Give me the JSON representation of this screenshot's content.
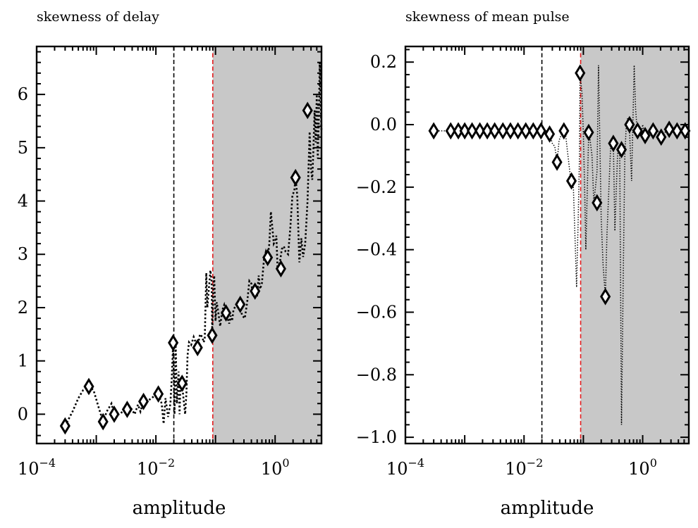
{
  "chart_data": [
    {
      "type": "scatter",
      "title": "skewness of delay",
      "xlabel": "amplitude",
      "ylabel": "",
      "xscale": "log",
      "xlim": [
        0.0001,
        6
      ],
      "ylim": [
        -0.55,
        6.9
      ],
      "x_ticks": [
        {
          "value": 0.0001,
          "base": "10",
          "exp": "−4"
        },
        {
          "value": 0.01,
          "base": "10",
          "exp": "−2"
        },
        {
          "value": 1,
          "base": "10",
          "exp": "0"
        }
      ],
      "y_ticks": [
        {
          "value": 0,
          "label": "0"
        },
        {
          "value": 1,
          "label": "1"
        },
        {
          "value": 2,
          "label": "2"
        },
        {
          "value": 3,
          "label": "3"
        },
        {
          "value": 4,
          "label": "4"
        },
        {
          "value": 5,
          "label": "5"
        },
        {
          "value": 6,
          "label": "6"
        }
      ],
      "vlines": [
        {
          "x": 0.02,
          "color": "#000000",
          "style": "dashed"
        },
        {
          "x": 0.09,
          "color": "#e41a1c",
          "style": "dashed"
        }
      ],
      "shaded_region": {
        "from": 0.09,
        "to": 6,
        "color": "#c8c8c8"
      },
      "markers": {
        "x": [
          0.0003,
          0.00075,
          0.0013,
          0.002,
          0.0033,
          0.0062,
          0.011,
          0.0195,
          0.0275,
          0.05,
          0.088,
          0.15,
          0.26,
          0.46,
          0.75,
          1.25,
          2.2,
          3.5
        ],
        "y": [
          -0.22,
          0.52,
          -0.14,
          0.0,
          0.09,
          0.24,
          0.38,
          1.34,
          0.58,
          1.25,
          1.48,
          1.9,
          2.06,
          2.31,
          2.94,
          2.73,
          4.44,
          5.7
        ]
      },
      "dotted_line": {
        "x": [
          0.0003,
          0.0004,
          0.0005,
          0.0006,
          0.00075,
          0.0009,
          0.0011,
          0.0013,
          0.0015,
          0.0018,
          0.002,
          0.0024,
          0.0028,
          0.0033,
          0.0038,
          0.0044,
          0.005,
          0.0055,
          0.0062,
          0.0066,
          0.0072,
          0.0085,
          0.0095,
          0.011,
          0.0125,
          0.0135,
          0.0145,
          0.016,
          0.0175,
          0.0185,
          0.0195,
          0.0205,
          0.0215,
          0.0225,
          0.024,
          0.025,
          0.026,
          0.0275,
          0.029,
          0.031,
          0.0325,
          0.034,
          0.036,
          0.039,
          0.043,
          0.05,
          0.055,
          0.06,
          0.063,
          0.066,
          0.07,
          0.073,
          0.078,
          0.082,
          0.086,
          0.088,
          0.091,
          0.095,
          0.1,
          0.105,
          0.11,
          0.12,
          0.13,
          0.14,
          0.15,
          0.16,
          0.17,
          0.18,
          0.19,
          0.2,
          0.22,
          0.24,
          0.26,
          0.28,
          0.31,
          0.34,
          0.37,
          0.4,
          0.43,
          0.46,
          0.5,
          0.53,
          0.56,
          0.6,
          0.65,
          0.7,
          0.75,
          0.8,
          0.85,
          0.9,
          0.95,
          1.0,
          1.05,
          1.1,
          1.2,
          1.3,
          1.4,
          1.5,
          1.65,
          1.8,
          1.95,
          2.1,
          2.2,
          2.35,
          2.55,
          2.75,
          2.95,
          3.2,
          3.5,
          3.8,
          4.0,
          4.2,
          4.4,
          4.6,
          4.8,
          5.0,
          5.2,
          5.4,
          5.6,
          6.0
        ],
        "y": [
          -0.22,
          0.05,
          0.3,
          0.45,
          0.52,
          0.45,
          0.12,
          -0.14,
          0.05,
          0.2,
          0.0,
          0.0,
          0.05,
          0.09,
          0.12,
          0.0,
          0.18,
          0.05,
          0.24,
          0.28,
          0.25,
          0.3,
          0.35,
          0.38,
          0.2,
          -0.18,
          0.3,
          -0.05,
          0.2,
          0.7,
          1.34,
          0.0,
          1.3,
          0.2,
          0.8,
          0.0,
          0.7,
          0.58,
          0.3,
          0.0,
          0.4,
          1.1,
          1.35,
          1.3,
          1.45,
          1.25,
          1.5,
          1.45,
          1.35,
          1.4,
          2.65,
          2.0,
          2.4,
          2.7,
          2.5,
          1.48,
          2.25,
          2.6,
          1.75,
          2.1,
          1.95,
          1.65,
          1.95,
          2.05,
          1.9,
          1.8,
          1.7,
          1.85,
          1.75,
          1.95,
          2.05,
          2.06,
          2.0,
          1.85,
          1.8,
          2.1,
          2.5,
          2.45,
          2.2,
          2.31,
          2.25,
          2.6,
          2.35,
          2.45,
          2.9,
          3.05,
          2.94,
          3.2,
          3.8,
          3.5,
          3.2,
          3.25,
          3.35,
          2.73,
          2.85,
          3.1,
          3.15,
          3.05,
          3.0,
          3.5,
          4.1,
          4.2,
          4.44,
          4.1,
          2.85,
          3.3,
          2.95,
          3.2,
          4.0,
          5.3,
          4.6,
          4.4,
          5.0,
          5.7,
          5.1,
          6.0,
          4.8,
          5.5,
          6.6,
          5.3
        ]
      }
    },
    {
      "type": "scatter",
      "title": "skewness of mean pulse",
      "xlabel": "amplitude",
      "ylabel": "",
      "xscale": "log",
      "xlim": [
        0.0001,
        6
      ],
      "ylim": [
        -1.02,
        0.25
      ],
      "x_ticks": [
        {
          "value": 0.0001,
          "base": "10",
          "exp": "−4"
        },
        {
          "value": 0.01,
          "base": "10",
          "exp": "−2"
        },
        {
          "value": 1,
          "base": "10",
          "exp": "0"
        }
      ],
      "y_ticks": [
        {
          "value": 0.2,
          "label": "0.2"
        },
        {
          "value": 0.0,
          "label": "0.0"
        },
        {
          "value": -0.2,
          "label": "−0.2"
        },
        {
          "value": -0.4,
          "label": "−0.4"
        },
        {
          "value": -0.6,
          "label": "−0.6"
        },
        {
          "value": -0.8,
          "label": "−0.8"
        },
        {
          "value": -1.0,
          "label": "−1.0"
        }
      ],
      "vlines": [
        {
          "x": 0.02,
          "color": "#000000",
          "style": "dashed"
        },
        {
          "x": 0.09,
          "color": "#e41a1c",
          "style": "dashed"
        }
      ],
      "shaded_region": {
        "from": 0.09,
        "to": 6,
        "color": "#c8c8c8"
      },
      "markers": {
        "x": [
          0.0003,
          0.00058,
          0.00078,
          0.001,
          0.00133,
          0.0018,
          0.0024,
          0.0032,
          0.0044,
          0.0059,
          0.0079,
          0.0107,
          0.0143,
          0.0193,
          0.027,
          0.036,
          0.047,
          0.063,
          0.088,
          0.123,
          0.17,
          0.235,
          0.32,
          0.44,
          0.6,
          0.82,
          1.1,
          1.5,
          2.05,
          2.8,
          3.8,
          5.2
        ],
        "y": [
          -0.02,
          -0.02,
          -0.02,
          -0.02,
          -0.02,
          -0.02,
          -0.02,
          -0.02,
          -0.02,
          -0.02,
          -0.02,
          -0.02,
          -0.02,
          -0.02,
          -0.03,
          -0.12,
          -0.02,
          -0.18,
          0.165,
          -0.025,
          -0.25,
          -0.55,
          -0.06,
          -0.08,
          0.0,
          -0.02,
          -0.035,
          -0.02,
          -0.04,
          -0.015,
          -0.02,
          -0.02
        ]
      },
      "dotted_line": {
        "x": [
          0.0003,
          0.0005,
          0.0008,
          0.0012,
          0.002,
          0.003,
          0.005,
          0.008,
          0.012,
          0.0193,
          0.022,
          0.025,
          0.027,
          0.03,
          0.033,
          0.036,
          0.039,
          0.043,
          0.047,
          0.05,
          0.055,
          0.06,
          0.063,
          0.067,
          0.072,
          0.077,
          0.082,
          0.086,
          0.088,
          0.095,
          0.1,
          0.105,
          0.11,
          0.123,
          0.13,
          0.14,
          0.15,
          0.16,
          0.17,
          0.18,
          0.2,
          0.215,
          0.235,
          0.25,
          0.27,
          0.29,
          0.32,
          0.34,
          0.36,
          0.38,
          0.41,
          0.44,
          0.47,
          0.5,
          0.53,
          0.56,
          0.6,
          0.65,
          0.72,
          0.76,
          0.82,
          0.9,
          0.95,
          1.0,
          1.05,
          1.1,
          1.2,
          1.3,
          1.4,
          1.5,
          1.65,
          1.8,
          2.05,
          2.3,
          2.55,
          2.8,
          3.1,
          3.4,
          3.8,
          4.2,
          4.6,
          5.2,
          6.0
        ],
        "y": [
          -0.02,
          -0.02,
          -0.02,
          -0.02,
          -0.02,
          -0.02,
          -0.02,
          -0.02,
          -0.02,
          -0.02,
          -0.02,
          -0.02,
          -0.03,
          -0.06,
          -0.07,
          -0.12,
          -0.05,
          -0.03,
          -0.02,
          -0.03,
          -0.1,
          -0.16,
          -0.18,
          -0.17,
          -0.35,
          -0.52,
          -0.3,
          -0.1,
          0.165,
          0.1,
          -0.03,
          -0.2,
          -0.4,
          -0.025,
          -0.05,
          -0.1,
          -0.25,
          -0.2,
          -0.15,
          0.19,
          -0.3,
          -0.45,
          -0.55,
          -0.35,
          -0.2,
          -0.06,
          -0.05,
          -0.34,
          -0.2,
          -0.08,
          -0.1,
          -0.96,
          -0.5,
          -0.1,
          0.0,
          0.02,
          -0.02,
          -0.18,
          0.19,
          0.05,
          -0.035,
          -0.02,
          -0.03,
          0.0,
          -0.02,
          -0.04,
          -0.02,
          -0.03,
          -0.025,
          -0.02,
          -0.01,
          -0.02,
          -0.04,
          -0.03,
          -0.015,
          -0.02,
          -0.02,
          -0.01,
          -0.02,
          -0.02,
          -0.02,
          -0.02,
          -0.02
        ]
      }
    }
  ]
}
